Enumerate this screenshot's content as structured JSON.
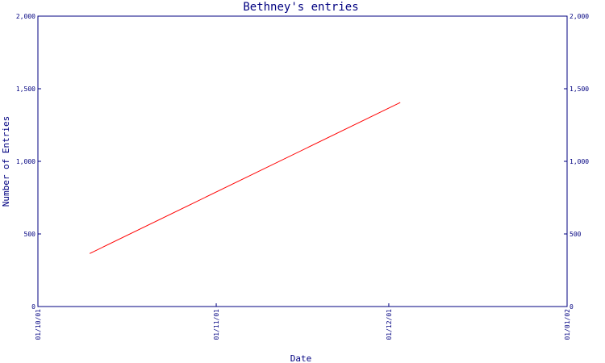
{
  "chart_data": {
    "type": "line",
    "title": "Bethney's entries",
    "xlabel": "Date",
    "ylabel": "Number of Entries",
    "x_tick_labels": [
      "01/10/01",
      "01/11/01",
      "01/12/01",
      "01/01/02"
    ],
    "y_tick_labels": [
      "0",
      "500",
      "1,000",
      "1,500",
      "2,000"
    ],
    "y_ticks": [
      0,
      500,
      1000,
      1500,
      2000
    ],
    "ylim": [
      0,
      2000
    ],
    "xlim": [
      "2001-10-01",
      "2002-01-01"
    ],
    "grid": false,
    "right_axis_mirror": true,
    "series": [
      {
        "color": "#ff0000",
        "points": [
          {
            "x": "2001-10-10",
            "y": 365
          },
          {
            "x": "2001-12-03",
            "y": 1405
          }
        ]
      }
    ],
    "colors": {
      "axis": "#000080",
      "text": "#000080",
      "line": "#ff0000"
    }
  }
}
